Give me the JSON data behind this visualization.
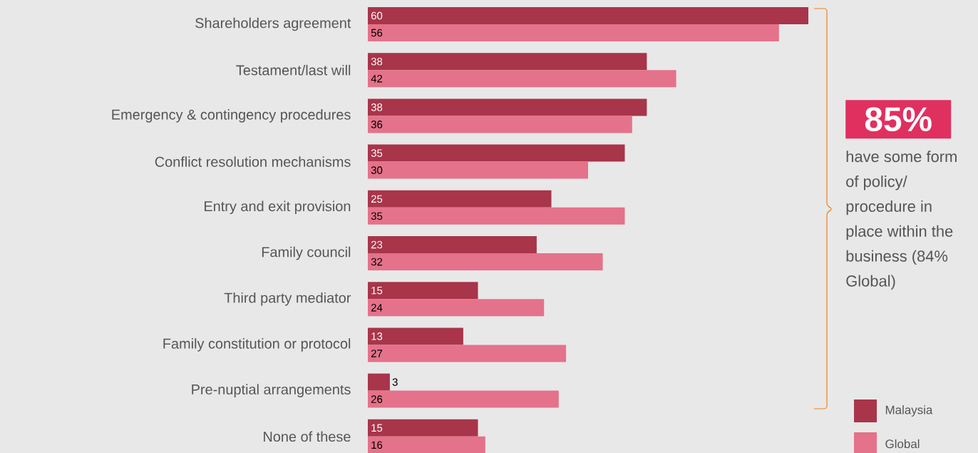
{
  "chart_data": {
    "type": "bar",
    "orientation": "horizontal",
    "categories": [
      "Shareholders agreement",
      "Testament/last will",
      "Emergency & contingency procedures",
      "Conflict resolution mechanisms",
      "Entry and exit provision",
      "Family council",
      "Third party mediator",
      "Family constitution or protocol",
      "Pre-nuptial arrangements",
      "None of these"
    ],
    "series": [
      {
        "name": "Malaysia",
        "color": "#a8354a",
        "values": [
          60,
          38,
          38,
          35,
          25,
          23,
          15,
          13,
          3,
          15
        ]
      },
      {
        "name": "Global",
        "color": "#e4728a",
        "values": [
          56,
          42,
          36,
          30,
          35,
          32,
          24,
          27,
          26,
          16
        ]
      }
    ],
    "data_labels": true,
    "legend": "bottom right",
    "annotations": [
      "85%",
      "have some form of policy/ procedure in place within the business (84% Global)"
    ]
  }
}
